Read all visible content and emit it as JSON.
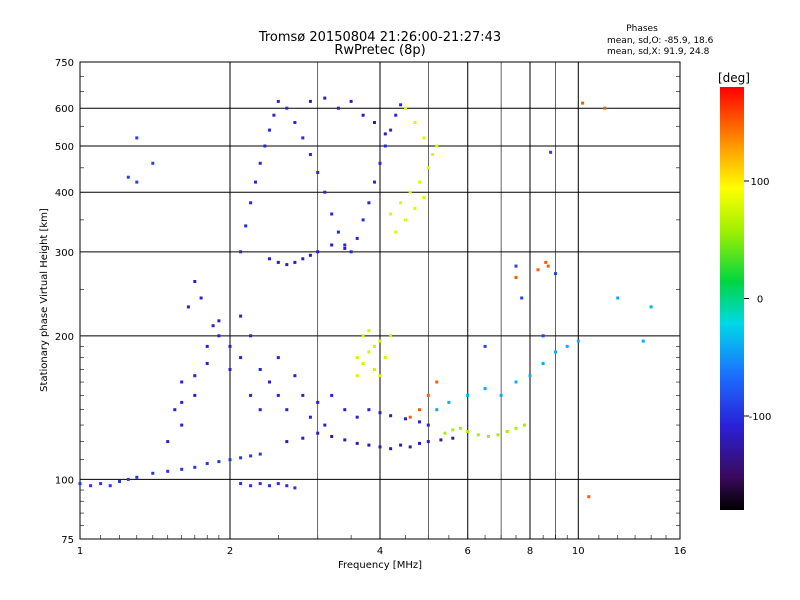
{
  "chart_data": {
    "type": "scatter",
    "title": "Tromsø 20150804 21:26:00-21:27:43",
    "subtitle": "RwPretec (8p)",
    "xlabel": "Frequency [MHz]",
    "ylabel": "Stationary phase Virtual Height [km]",
    "x_scale": "log",
    "y_scale": "log",
    "xlim": [
      1,
      16
    ],
    "ylim": [
      75,
      750
    ],
    "x_ticks": [
      1,
      2,
      4,
      6,
      8,
      10,
      16
    ],
    "x_tick_labels": [
      "1",
      "2",
      "4",
      "6",
      "8",
      "10",
      "16"
    ],
    "x_minor_ticks": [
      3,
      5,
      7,
      9
    ],
    "y_ticks": [
      75,
      100,
      200,
      300,
      400,
      500,
      600,
      750
    ],
    "y_tick_labels": [
      "75",
      "100",
      "200",
      "300",
      "400",
      "500",
      "600",
      "750"
    ],
    "grid": true,
    "phases_box": {
      "title": "Phases",
      "line_o": "mean, sd,O: -85.9, 18.6",
      "line_x": "mean, sd,X:  91.9, 24.8"
    },
    "colorbar": {
      "label": "[deg]",
      "range": [
        -180,
        180
      ],
      "ticks": [
        100,
        0,
        -100
      ],
      "tick_labels": [
        "100",
        "0",
        "-100"
      ]
    },
    "series": [
      {
        "color_phase": -95,
        "points": [
          [
            1.0,
            98
          ],
          [
            1.05,
            97
          ],
          [
            1.1,
            98
          ],
          [
            1.15,
            97
          ],
          [
            1.2,
            99
          ],
          [
            1.25,
            100
          ],
          [
            1.3,
            101
          ],
          [
            1.4,
            103
          ],
          [
            1.5,
            104
          ],
          [
            1.6,
            105
          ],
          [
            1.7,
            106
          ],
          [
            1.8,
            108
          ],
          [
            1.9,
            109
          ],
          [
            2.0,
            110
          ],
          [
            2.1,
            111
          ],
          [
            2.2,
            112
          ],
          [
            2.3,
            113
          ]
        ]
      },
      {
        "color_phase": -100,
        "points": [
          [
            2.1,
            98
          ],
          [
            2.2,
            97
          ],
          [
            2.3,
            98
          ],
          [
            2.4,
            97
          ],
          [
            2.5,
            98
          ],
          [
            2.6,
            97
          ],
          [
            2.7,
            96
          ]
        ]
      },
      {
        "color_phase": -110,
        "points": [
          [
            1.5,
            120
          ],
          [
            1.6,
            130
          ],
          [
            1.6,
            145
          ],
          [
            1.7,
            150
          ],
          [
            1.7,
            165
          ],
          [
            1.8,
            175
          ],
          [
            1.8,
            190
          ],
          [
            1.9,
            200
          ],
          [
            1.9,
            215
          ],
          [
            1.6,
            160
          ],
          [
            1.55,
            140
          ],
          [
            1.65,
            230
          ],
          [
            1.7,
            260
          ],
          [
            1.75,
            240
          ],
          [
            1.85,
            210
          ],
          [
            2.0,
            170
          ],
          [
            2.0,
            190
          ],
          [
            2.1,
            180
          ],
          [
            2.1,
            220
          ],
          [
            2.2,
            150
          ],
          [
            2.2,
            200
          ],
          [
            2.3,
            140
          ],
          [
            2.3,
            170
          ],
          [
            2.4,
            160
          ],
          [
            2.5,
            150
          ],
          [
            2.5,
            180
          ],
          [
            2.6,
            140
          ],
          [
            2.7,
            165
          ],
          [
            2.8,
            150
          ],
          [
            2.9,
            135
          ],
          [
            3.0,
            145
          ],
          [
            3.1,
            130
          ],
          [
            3.2,
            150
          ],
          [
            3.4,
            140
          ],
          [
            3.6,
            135
          ],
          [
            3.8,
            140
          ],
          [
            4.0,
            138
          ],
          [
            4.2,
            136
          ],
          [
            4.5,
            134
          ],
          [
            4.8,
            132
          ],
          [
            5.0,
            130
          ]
        ]
      },
      {
        "color_phase": -120,
        "points": [
          [
            2.6,
            120
          ],
          [
            2.8,
            122
          ],
          [
            3.0,
            125
          ],
          [
            3.2,
            123
          ],
          [
            3.4,
            121
          ],
          [
            3.6,
            119
          ],
          [
            3.8,
            118
          ],
          [
            4.0,
            117
          ],
          [
            4.2,
            116
          ],
          [
            4.4,
            118
          ],
          [
            4.6,
            117
          ],
          [
            4.8,
            119
          ],
          [
            5.0,
            120
          ],
          [
            5.3,
            121
          ],
          [
            5.6,
            122
          ]
        ]
      },
      {
        "color_phase": -105,
        "points": [
          [
            2.1,
            300
          ],
          [
            2.15,
            340
          ],
          [
            2.2,
            380
          ],
          [
            2.25,
            420
          ],
          [
            2.3,
            460
          ],
          [
            2.35,
            500
          ],
          [
            2.4,
            540
          ],
          [
            2.45,
            580
          ],
          [
            2.5,
            620
          ],
          [
            2.6,
            600
          ],
          [
            2.7,
            560
          ],
          [
            2.8,
            520
          ],
          [
            2.9,
            480
          ],
          [
            3.0,
            440
          ],
          [
            3.1,
            400
          ],
          [
            3.2,
            360
          ],
          [
            3.3,
            330
          ],
          [
            3.4,
            310
          ],
          [
            3.5,
            300
          ],
          [
            3.6,
            320
          ],
          [
            3.7,
            350
          ],
          [
            3.8,
            380
          ],
          [
            3.9,
            420
          ],
          [
            4.0,
            460
          ],
          [
            4.1,
            500
          ],
          [
            4.2,
            540
          ],
          [
            4.3,
            580
          ],
          [
            4.4,
            610
          ]
        ]
      },
      {
        "color_phase": -115,
        "points": [
          [
            2.4,
            290
          ],
          [
            2.5,
            285
          ],
          [
            2.6,
            282
          ],
          [
            2.7,
            285
          ],
          [
            2.8,
            290
          ],
          [
            2.9,
            295
          ],
          [
            3.0,
            300
          ],
          [
            3.2,
            310
          ],
          [
            3.4,
            305
          ],
          [
            2.9,
            620
          ],
          [
            3.1,
            630
          ],
          [
            3.3,
            600
          ],
          [
            3.5,
            620
          ],
          [
            3.7,
            580
          ],
          [
            3.9,
            560
          ],
          [
            4.1,
            530
          ]
        ]
      },
      {
        "color_phase": 80,
        "points": [
          [
            4.2,
            360
          ],
          [
            4.4,
            380
          ],
          [
            4.6,
            400
          ],
          [
            4.8,
            420
          ],
          [
            5.0,
            450
          ],
          [
            5.1,
            480
          ],
          [
            5.2,
            500
          ],
          [
            4.9,
            520
          ],
          [
            4.7,
            560
          ],
          [
            4.5,
            600
          ],
          [
            4.3,
            330
          ],
          [
            4.5,
            350
          ],
          [
            4.7,
            370
          ],
          [
            4.9,
            390
          ]
        ]
      },
      {
        "color_phase": 75,
        "points": [
          [
            3.6,
            180
          ],
          [
            3.7,
            175
          ],
          [
            3.8,
            185
          ],
          [
            3.9,
            190
          ],
          [
            4.0,
            195
          ],
          [
            3.7,
            200
          ],
          [
            3.8,
            205
          ],
          [
            3.9,
            170
          ],
          [
            4.0,
            165
          ],
          [
            4.1,
            180
          ],
          [
            4.2,
            200
          ],
          [
            3.6,
            165
          ]
        ]
      },
      {
        "color_phase": 60,
        "points": [
          [
            5.4,
            125
          ],
          [
            5.6,
            127
          ],
          [
            5.8,
            128
          ],
          [
            6.0,
            126
          ],
          [
            6.3,
            124
          ],
          [
            6.6,
            123
          ],
          [
            6.9,
            124
          ],
          [
            7.2,
            126
          ],
          [
            7.5,
            128
          ],
          [
            7.8,
            130
          ]
        ]
      },
      {
        "color_phase": 150,
        "points": [
          [
            4.6,
            135
          ],
          [
            4.8,
            140
          ],
          [
            5.0,
            150
          ],
          [
            5.2,
            160
          ],
          [
            10.2,
            615
          ],
          [
            11.3,
            600
          ],
          [
            8.6,
            285
          ],
          [
            8.7,
            280
          ],
          [
            8.3,
            275
          ],
          [
            7.5,
            265
          ],
          [
            10.5,
            92
          ]
        ]
      },
      {
        "color_phase": -40,
        "points": [
          [
            5.2,
            140
          ],
          [
            5.5,
            145
          ],
          [
            6.0,
            150
          ],
          [
            6.5,
            155
          ],
          [
            7.0,
            150
          ],
          [
            7.5,
            160
          ],
          [
            8.0,
            165
          ],
          [
            8.5,
            175
          ],
          [
            9.0,
            185
          ],
          [
            9.5,
            190
          ],
          [
            10.0,
            195
          ],
          [
            12.0,
            240
          ],
          [
            14.0,
            230
          ],
          [
            13.5,
            195
          ]
        ]
      },
      {
        "color_phase": -90,
        "points": [
          [
            1.3,
            520
          ],
          [
            1.3,
            420
          ],
          [
            1.25,
            430
          ],
          [
            1.4,
            460
          ],
          [
            8.8,
            485
          ],
          [
            7.5,
            280
          ],
          [
            9.0,
            270
          ],
          [
            7.7,
            240
          ],
          [
            6.5,
            190
          ],
          [
            8.5,
            200
          ]
        ]
      }
    ]
  }
}
